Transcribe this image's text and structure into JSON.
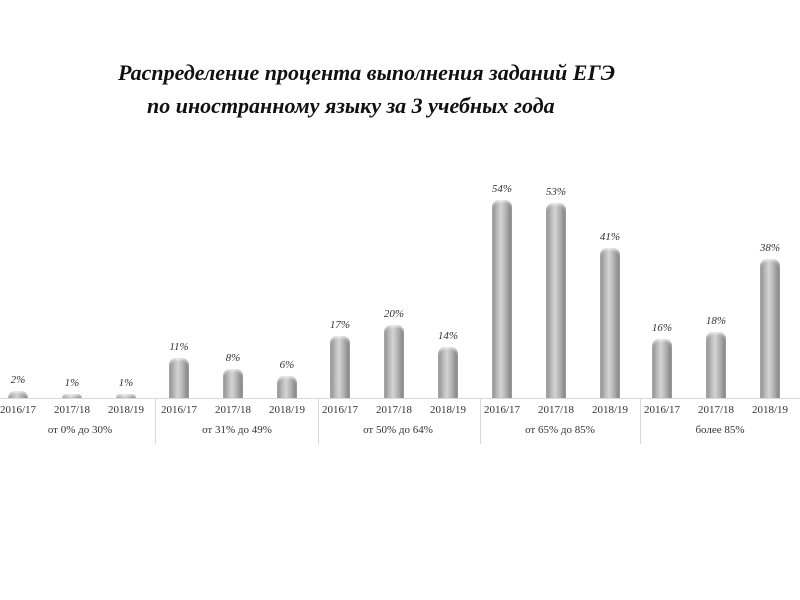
{
  "title": {
    "line1": "Распределение процента выполнения заданий  ЕГЭ",
    "line2": "по иностранному языку за 3 учебных  года"
  },
  "chart_data": {
    "type": "bar",
    "title": "Распределение процента выполнения заданий ЕГЭ по иностранному языку за 3 учебных года",
    "xlabel": "",
    "ylabel": "",
    "grid": false,
    "legend": null,
    "groups": [
      "от 0% до 30%",
      "от 31% до 49%",
      "от 50% до 64%",
      "от 65% до 85%",
      "более 85%"
    ],
    "categories": [
      "2016/17",
      "2017/18",
      "2018/19"
    ],
    "series": [
      {
        "group": "от 0% до 30%",
        "values": [
          2,
          1,
          1
        ],
        "labels": [
          "2%",
          "1%",
          "1%"
        ]
      },
      {
        "group": "от 31% до 49%",
        "values": [
          11,
          8,
          6
        ],
        "labels": [
          "11%",
          "8%",
          "6%"
        ]
      },
      {
        "group": "от 50% до 64%",
        "values": [
          17,
          20,
          14
        ],
        "labels": [
          "17%",
          "20%",
          "14%"
        ]
      },
      {
        "group": "от 65% до 85%",
        "values": [
          54,
          53,
          41
        ],
        "labels": [
          "54%",
          "53%",
          "41%"
        ]
      },
      {
        "group": "более 85%",
        "values": [
          16,
          18,
          38
        ],
        "labels": [
          "16%",
          "18%",
          "38%"
        ]
      }
    ],
    "ylim": [
      0,
      60
    ],
    "bar_color": "#a8a8a8"
  }
}
